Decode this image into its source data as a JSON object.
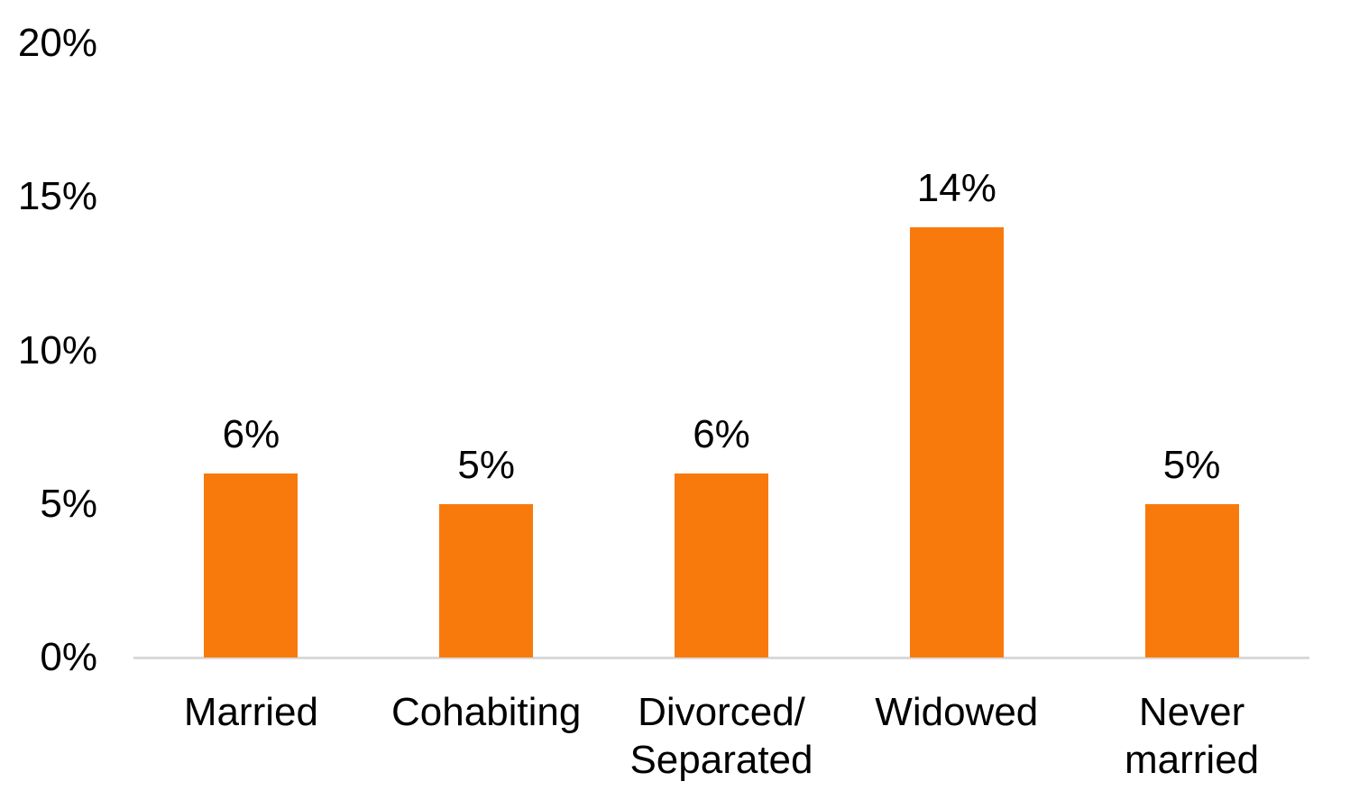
{
  "chart_data": {
    "type": "bar",
    "title": "",
    "xlabel": "",
    "ylabel": "",
    "categories": [
      "Married",
      "Cohabiting",
      "Divorced/Separated",
      "Widowed",
      "Never married"
    ],
    "category_lines": [
      [
        "Married"
      ],
      [
        "Cohabiting"
      ],
      [
        "Divorced/",
        "Separated"
      ],
      [
        "Widowed"
      ],
      [
        "Never",
        "married"
      ]
    ],
    "values": [
      6,
      5,
      6,
      14,
      5
    ],
    "data_labels": [
      "6%",
      "5%",
      "6%",
      "14%",
      "5%"
    ],
    "y_ticks": [
      {
        "label": "20%",
        "value": 20
      },
      {
        "label": "15%",
        "value": 15
      },
      {
        "label": "10%",
        "value": 10
      },
      {
        "label": "5%",
        "value": 5
      },
      {
        "label": "0%",
        "value": 0
      }
    ],
    "ylim": [
      0,
      20
    ],
    "grid": false,
    "legend_position": "none",
    "colors": {
      "bar_fill": "#f87a0d",
      "axis_line": "#d9d9d9",
      "text": "#000000",
      "background": "#ffffff"
    }
  }
}
